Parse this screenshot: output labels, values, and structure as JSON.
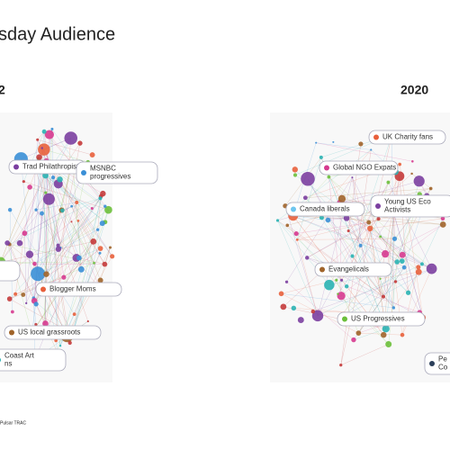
{
  "title": "sday Audience",
  "panels": [
    {
      "year": "2",
      "labels": [
        {
          "lines": [
            "Trad Philathropists"
          ]
        },
        {
          "lines": [
            "MSNBC",
            "progressives"
          ]
        },
        {
          "lines": [
            "Blogger Moms"
          ]
        },
        {
          "lines": [
            "US local grassroots"
          ]
        },
        {
          "lines": [
            "Coast Art",
            "ns"
          ]
        }
      ]
    },
    {
      "year": "2020",
      "labels": [
        {
          "lines": [
            "UK Charity fans"
          ]
        },
        {
          "lines": [
            "Global NGO Expats"
          ]
        },
        {
          "lines": [
            "Canada liberals"
          ]
        },
        {
          "lines": [
            "Young US Eco",
            "Activists"
          ]
        },
        {
          "lines": [
            "Evangelicals"
          ]
        },
        {
          "lines": [
            "US Progressives"
          ]
        },
        {
          "lines": [
            "Pe",
            "Co"
          ]
        }
      ]
    }
  ],
  "footer": "Pulsar TRAC"
}
